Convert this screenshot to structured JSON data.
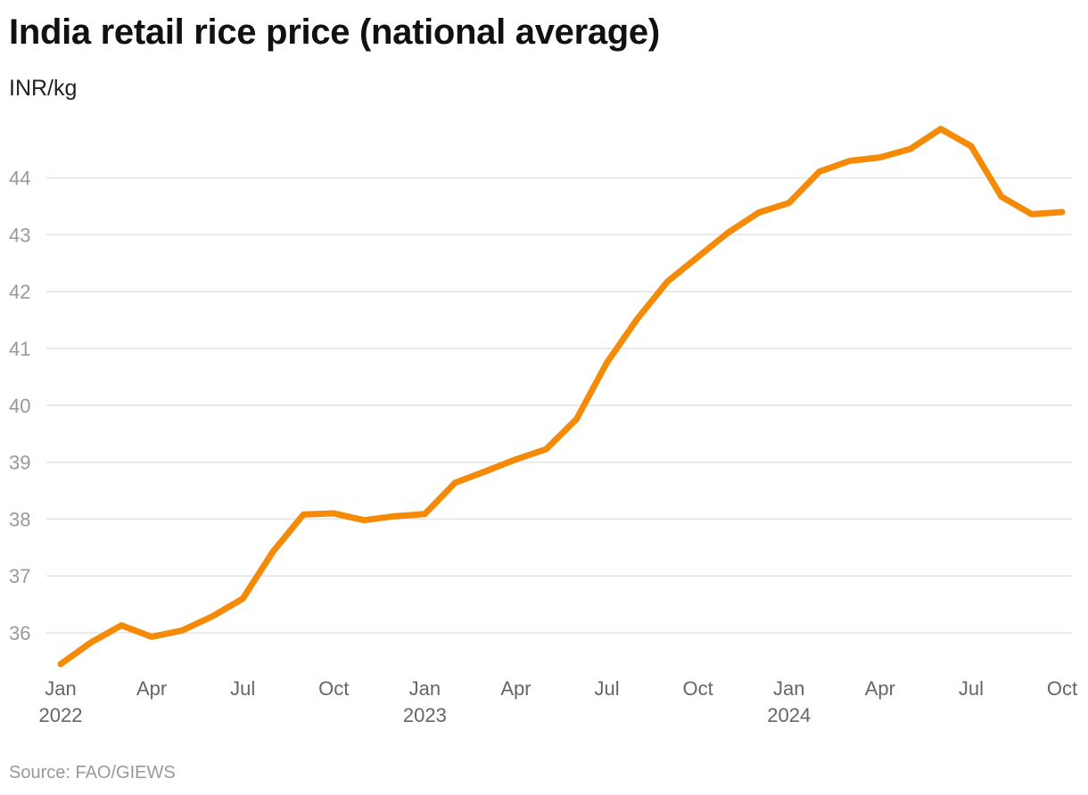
{
  "title": "India retail rice price (national average)",
  "subtitle": "INR/kg",
  "source": "Source: FAO/GIEWS",
  "colors": {
    "line": "#f58a07",
    "grid": "#e3e3e3",
    "tick_text": "#999999",
    "axis_text": "#666666"
  },
  "chart_data": {
    "type": "line",
    "title": "India retail rice price (national average)",
    "ylabel": "INR/kg",
    "xlabel": "",
    "ylim": [
      35.3,
      45.3
    ],
    "yticks": [
      36,
      37,
      38,
      39,
      40,
      41,
      42,
      43,
      44
    ],
    "grid": true,
    "legend": "none",
    "xticks": [
      {
        "date": "2022-01",
        "label": "Jan",
        "year": "2022"
      },
      {
        "date": "2022-04",
        "label": "Apr",
        "year": ""
      },
      {
        "date": "2022-07",
        "label": "Jul",
        "year": ""
      },
      {
        "date": "2022-10",
        "label": "Oct",
        "year": ""
      },
      {
        "date": "2023-01",
        "label": "Jan",
        "year": "2023"
      },
      {
        "date": "2023-04",
        "label": "Apr",
        "year": ""
      },
      {
        "date": "2023-07",
        "label": "Jul",
        "year": ""
      },
      {
        "date": "2023-10",
        "label": "Oct",
        "year": ""
      },
      {
        "date": "2024-01",
        "label": "Jan",
        "year": "2024"
      },
      {
        "date": "2024-04",
        "label": "Apr",
        "year": ""
      },
      {
        "date": "2024-07",
        "label": "Jul",
        "year": ""
      },
      {
        "date": "2024-10",
        "label": "Oct",
        "year": ""
      }
    ],
    "series": [
      {
        "x": [
          "2022-01",
          "2022-02",
          "2022-03",
          "2022-04",
          "2022-05",
          "2022-06",
          "2022-07",
          "2022-08",
          "2022-09",
          "2022-10",
          "2022-11",
          "2022-12",
          "2023-01",
          "2023-02",
          "2023-03",
          "2023-04",
          "2023-05",
          "2023-06",
          "2023-07",
          "2023-08",
          "2023-09",
          "2023-10",
          "2023-11",
          "2023-12",
          "2024-01",
          "2024-02",
          "2024-03",
          "2024-04",
          "2024-05",
          "2024-06",
          "2024-07",
          "2024-08",
          "2024-09",
          "2024-10"
        ],
        "values": [
          35.45,
          35.83,
          36.13,
          35.93,
          36.04,
          36.29,
          36.6,
          37.43,
          38.08,
          38.1,
          37.98,
          38.05,
          38.09,
          38.64,
          38.84,
          39.05,
          39.23,
          39.76,
          40.75,
          41.52,
          42.18,
          42.61,
          43.04,
          43.39,
          43.56,
          44.11,
          44.3,
          44.36,
          44.51,
          44.86,
          44.56,
          43.67,
          43.36,
          43.4
        ]
      }
    ]
  }
}
